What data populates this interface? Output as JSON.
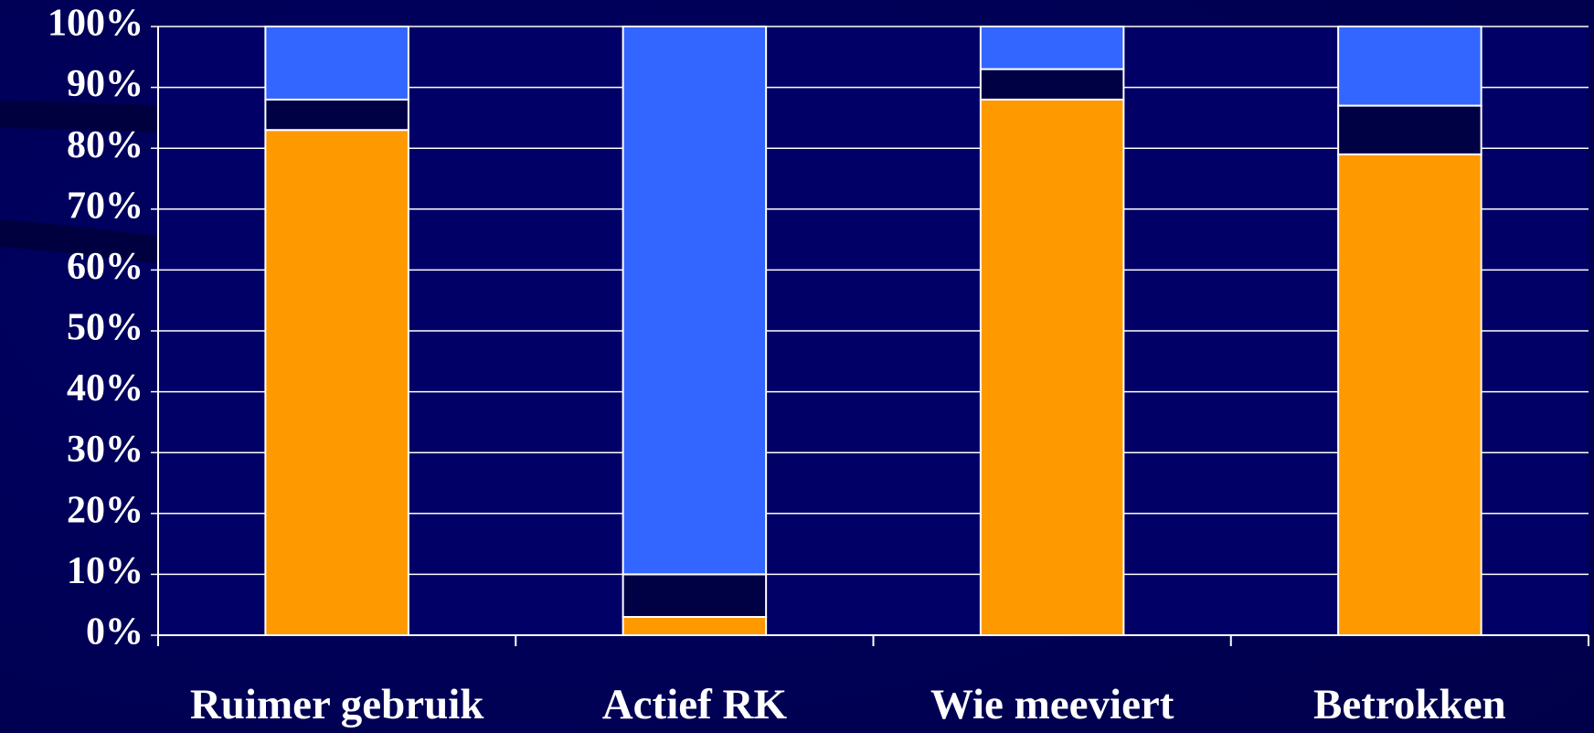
{
  "chart_data": {
    "type": "stacked_bar",
    "categories": [
      "Ruimer gebruik",
      "Actief RK",
      "Wie meeviert",
      "Betrokken"
    ],
    "series": [
      {
        "color": "#ff9900",
        "values": [
          83,
          3,
          88,
          79
        ]
      },
      {
        "color": "#000044",
        "values": [
          5,
          7,
          5,
          8
        ]
      },
      {
        "color": "#3366ff",
        "values": [
          12,
          90,
          7,
          13
        ]
      }
    ],
    "ylim": [
      0,
      100
    ],
    "yticks": [
      {
        "value": 0,
        "label": "0%"
      },
      {
        "value": 10,
        "label": "10%"
      },
      {
        "value": 20,
        "label": "20%"
      },
      {
        "value": 30,
        "label": "30%"
      },
      {
        "value": 40,
        "label": "40%"
      },
      {
        "value": 50,
        "label": "50%"
      },
      {
        "value": 60,
        "label": "60%"
      },
      {
        "value": 70,
        "label": "70%"
      },
      {
        "value": 80,
        "label": "80%"
      },
      {
        "value": 90,
        "label": "90%"
      },
      {
        "value": 100,
        "label": "100%"
      }
    ],
    "grid": true
  }
}
